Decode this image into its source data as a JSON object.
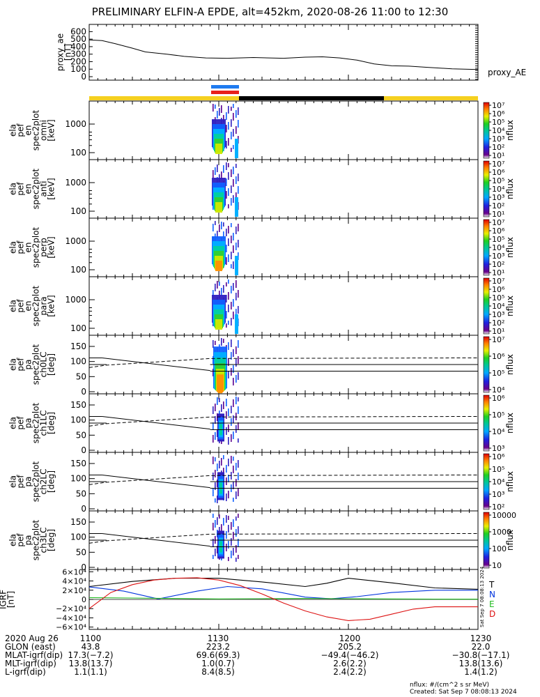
{
  "title": "PRELIMINARY ELFIN-A EPDE, alt=452km, 2020-08-26 11:00 to 12:30",
  "created": "Created: Sat Sep  7 08:08:13 2024",
  "created_vertical": "Sat Sep  7 08:08:13 2024",
  "nflux_units": "nflux: #/(cm^2 s sr MeV)",
  "colors": {
    "yellow": "#f5d020",
    "black": "#000000",
    "blue_bar": "#1e7bf0",
    "red_bar": "#e8201a",
    "curve_black": "#000000",
    "curve_blue": "#0033dd",
    "curve_green": "#22bb22",
    "curve_red": "#dd1111"
  },
  "chart_data": [
    {
      "type": "line",
      "name": "proxy_ae_panel",
      "ylabel": "proxy_ae\n[nT]",
      "legend": "proxy_AE",
      "ylim": [
        0,
        650
      ],
      "yticks": [
        "0",
        "100",
        "200",
        "300",
        "400",
        "500",
        "600"
      ],
      "series": [
        {
          "name": "proxy_AE",
          "x": [
            0,
            3,
            6,
            10,
            13,
            18,
            22,
            27,
            32,
            38,
            45,
            50,
            54,
            58,
            62,
            66,
            70,
            74,
            78,
            84,
            90
          ],
          "values": [
            490,
            480,
            440,
            380,
            330,
            300,
            270,
            250,
            245,
            255,
            245,
            260,
            265,
            250,
            220,
            170,
            145,
            140,
            125,
            105,
            95
          ]
        }
      ],
      "xlim": [
        0,
        90
      ]
    },
    {
      "type": "heatmap",
      "name": "omni_spectrogram",
      "ylabel": "ela\npef\nen\nspec2plot\nomni\n[keV]",
      "yscale": "log",
      "yticks": [
        "100",
        "1000"
      ],
      "colorbar_label": "nflux",
      "colorbar_ticks": [
        "10¹",
        "10²",
        "10³",
        "10⁴",
        "10⁵",
        "10⁶",
        "10⁷"
      ]
    },
    {
      "type": "heatmap",
      "name": "anti_spectrogram",
      "ylabel": "ela\npef\nen\nspec2plot\nanti\n[keV]",
      "yscale": "log",
      "yticks": [
        "100",
        "1000"
      ],
      "colorbar_label": "nflux",
      "colorbar_ticks": [
        "10¹",
        "10²",
        "10³",
        "10⁴",
        "10⁵",
        "10⁶",
        "10⁷"
      ]
    },
    {
      "type": "heatmap",
      "name": "perp_spectrogram",
      "ylabel": "ela\npef\nen\nspec2plot\nperp\n[keV]",
      "yscale": "log",
      "yticks": [
        "100",
        "1000"
      ],
      "colorbar_label": "nflux",
      "colorbar_ticks": [
        "10¹",
        "10²",
        "10³",
        "10⁴",
        "10⁵",
        "10⁶",
        "10⁷"
      ]
    },
    {
      "type": "heatmap",
      "name": "para_spectrogram",
      "ylabel": "ela\npef\nen\nspec2plot\npara\n[keV]",
      "yscale": "log",
      "yticks": [
        "100",
        "1000"
      ],
      "colorbar_label": "nflux",
      "colorbar_ticks": [
        "10¹",
        "10²",
        "10³",
        "10⁴",
        "10⁵",
        "10⁶",
        "10⁷"
      ]
    },
    {
      "type": "heatmap",
      "name": "ch0LC_pitch",
      "ylabel": "ela\npef\npa\nspec2plot\nch0LC\n[deg]",
      "ylim": [
        0,
        180
      ],
      "yticks": [
        "0",
        "50",
        "100",
        "150"
      ],
      "colorbar_label": "nflux",
      "colorbar_ticks": [
        "10⁴",
        "10⁵",
        "10⁶",
        "10⁷"
      ]
    },
    {
      "type": "heatmap",
      "name": "ch1LC_pitch",
      "ylabel": "ela\npef\npa\nspec2plot\nch1LC\n[deg]",
      "ylim": [
        0,
        180
      ],
      "yticks": [
        "0",
        "50",
        "100",
        "150"
      ],
      "colorbar_label": "nflux",
      "colorbar_ticks": [
        "10³",
        "10⁴",
        "10⁵",
        "10⁶"
      ]
    },
    {
      "type": "heatmap",
      "name": "ch2LC_pitch",
      "ylabel": "ela\npef\npa\nspec2plot\nch2LC\n[deg]",
      "ylim": [
        0,
        180
      ],
      "yticks": [
        "0",
        "50",
        "100",
        "150"
      ],
      "colorbar_label": "nflux",
      "colorbar_ticks": [
        "10²",
        "10³",
        "10⁴",
        "10⁵",
        "10⁶"
      ]
    },
    {
      "type": "heatmap",
      "name": "ch3LC_pitch",
      "ylabel": "ela\npef\npa\nspec2plot\nch3LC\n[deg]",
      "ylim": [
        0,
        180
      ],
      "yticks": [
        "0",
        "50",
        "100",
        "150"
      ],
      "colorbar_label": "nflux",
      "colorbar_ticks": [
        "10",
        "100",
        "1000",
        "10000"
      ]
    },
    {
      "type": "line",
      "name": "igrf_panel",
      "ylabel": "IGRF\n[nT]",
      "ylim": [
        -65000,
        65000
      ],
      "yticks": [
        "−6×10⁴",
        "−4×10⁴",
        "−2×10⁴",
        "0",
        "2×10⁴",
        "4×10⁴",
        "6×10⁴"
      ],
      "legend": [
        "T",
        "N",
        "E",
        "D"
      ],
      "series": [
        {
          "name": "T",
          "color": "#000000",
          "x": [
            0,
            10,
            20,
            30,
            40,
            50,
            55,
            60,
            70,
            80,
            90
          ],
          "values": [
            28000,
            39000,
            46000,
            46000,
            38000,
            28000,
            35000,
            46000,
            36000,
            25000,
            22000
          ]
        },
        {
          "name": "N",
          "color": "#0033dd",
          "x": [
            0,
            8,
            16,
            25,
            32,
            40,
            50,
            56,
            62,
            70,
            80,
            90
          ],
          "values": [
            27000,
            18000,
            1000,
            18000,
            28000,
            23000,
            5000,
            1500,
            6000,
            15000,
            20000,
            20000
          ]
        },
        {
          "name": "E",
          "color": "#22bb22",
          "x": [
            0,
            10,
            20,
            30,
            40,
            50,
            60,
            70,
            80,
            90
          ],
          "values": [
            4000,
            3000,
            2000,
            1000,
            1500,
            2000,
            1500,
            1000,
            800,
            600
          ]
        },
        {
          "name": "D",
          "color": "#dd1111",
          "x": [
            0,
            5,
            10,
            15,
            20,
            25,
            30,
            35,
            40,
            45,
            50,
            55,
            60,
            65,
            70,
            75,
            80,
            85,
            90
          ],
          "values": [
            -20000,
            15000,
            32000,
            42000,
            46000,
            47000,
            42000,
            30000,
            12000,
            -8000,
            -25000,
            -38000,
            -46000,
            -43000,
            -32000,
            -21000,
            -16000,
            -16000,
            -16000
          ]
        }
      ]
    }
  ],
  "x_axis": {
    "xlim": [
      0,
      90
    ],
    "ticks": [
      {
        "t": 0,
        "label": "1100"
      },
      {
        "t": 30,
        "label": "1130"
      },
      {
        "t": 60,
        "label": "1200"
      },
      {
        "t": 90,
        "label": "1230"
      }
    ]
  },
  "footer": {
    "labels": [
      "2020 Aug 26",
      "GLON (east)",
      "MLAT-igrf(dip)",
      "MLT-igrf(dip)",
      "L-igrf(dip)"
    ],
    "col_1100": [
      "1100",
      "43.8",
      "17.3(−7.2)",
      "13.8(13.7)",
      "1.1(1.1)"
    ],
    "col_1130": [
      "1130",
      "223.2",
      "69.6(69.3)",
      "1.0(0.7)",
      "8.4(8.5)"
    ],
    "col_1200": [
      "1200",
      "205.2",
      "−49.4(−46.2)",
      "2.6(2.2)",
      "2.4(2.2)"
    ],
    "col_1230": [
      "1230",
      "22.0",
      "−30.8(−17.1)",
      "13.8(13.6)",
      "1.4(1.2)"
    ]
  }
}
